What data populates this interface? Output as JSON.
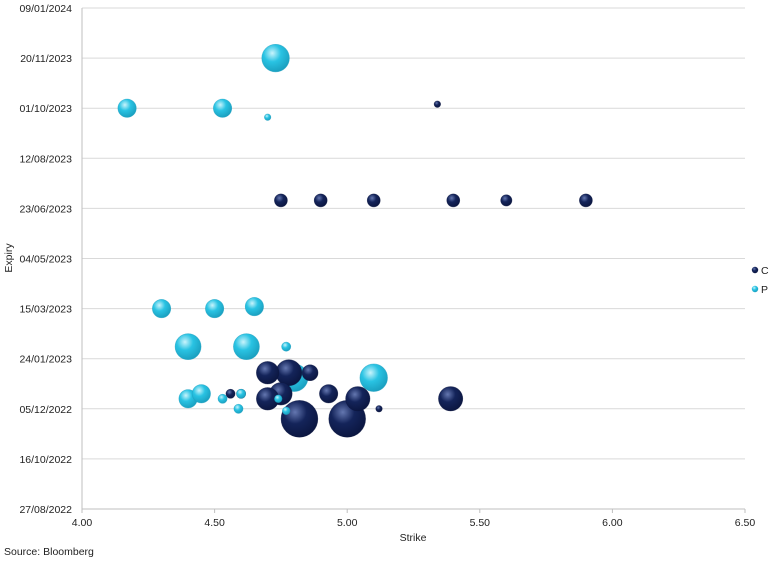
{
  "chart_data": {
    "type": "scatter",
    "subtype": "bubble",
    "title": "",
    "xlabel": "Strike",
    "ylabel": "Expiry",
    "xlim": [
      4.0,
      6.5
    ],
    "ylim": [
      "27/08/2022",
      "09/01/2024"
    ],
    "x_ticks": [
      "4.00",
      "4.50",
      "5.00",
      "5.50",
      "6.00",
      "6.50"
    ],
    "y_ticks": [
      "27/08/2022",
      "16/10/2022",
      "05/12/2022",
      "24/01/2023",
      "15/03/2023",
      "04/05/2023",
      "23/06/2023",
      "12/08/2023",
      "01/10/2023",
      "20/11/2023",
      "09/01/2024"
    ],
    "grid": "horizontal",
    "legend_position": "right",
    "series": [
      {
        "name": "C",
        "color": "#14245a",
        "points": [
          {
            "x": 4.75,
            "y": "01/07/2023",
            "size": 2
          },
          {
            "x": 4.9,
            "y": "01/07/2023",
            "size": 2
          },
          {
            "x": 5.1,
            "y": "01/07/2023",
            "size": 2
          },
          {
            "x": 5.4,
            "y": "01/07/2023",
            "size": 2
          },
          {
            "x": 5.6,
            "y": "01/07/2023",
            "size": 1.5
          },
          {
            "x": 5.9,
            "y": "01/07/2023",
            "size": 2
          },
          {
            "x": 5.34,
            "y": "05/10/2023",
            "size": 0.5
          },
          {
            "x": 4.7,
            "y": "10/01/2023",
            "size": 6
          },
          {
            "x": 4.78,
            "y": "10/01/2023",
            "size": 8
          },
          {
            "x": 4.86,
            "y": "10/01/2023",
            "size": 3
          },
          {
            "x": 4.75,
            "y": "20/12/2022",
            "size": 6
          },
          {
            "x": 4.7,
            "y": "15/12/2022",
            "size": 6
          },
          {
            "x": 4.93,
            "y": "20/12/2022",
            "size": 4
          },
          {
            "x": 5.04,
            "y": "15/12/2022",
            "size": 7
          },
          {
            "x": 5.39,
            "y": "15/12/2022",
            "size": 7
          },
          {
            "x": 4.56,
            "y": "20/12/2022",
            "size": 1
          },
          {
            "x": 4.6,
            "y": "20/12/2022",
            "size": 1
          },
          {
            "x": 5.12,
            "y": "05/12/2022",
            "size": 0.5
          },
          {
            "x": 4.82,
            "y": "25/11/2022",
            "size": 16
          },
          {
            "x": 5.0,
            "y": "25/11/2022",
            "size": 16
          }
        ]
      },
      {
        "name": "P",
        "color": "#29c3e3",
        "points": [
          {
            "x": 4.73,
            "y": "20/11/2023",
            "size": 9
          },
          {
            "x": 4.17,
            "y": "01/10/2023",
            "size": 4
          },
          {
            "x": 4.53,
            "y": "01/10/2023",
            "size": 4
          },
          {
            "x": 4.7,
            "y": "22/09/2023",
            "size": 0.5
          },
          {
            "x": 4.3,
            "y": "15/03/2023",
            "size": 4
          },
          {
            "x": 4.5,
            "y": "15/03/2023",
            "size": 4
          },
          {
            "x": 4.65,
            "y": "17/03/2023",
            "size": 4
          },
          {
            "x": 4.4,
            "y": "05/02/2023",
            "size": 8
          },
          {
            "x": 4.62,
            "y": "05/02/2023",
            "size": 8
          },
          {
            "x": 4.77,
            "y": "05/02/2023",
            "size": 1
          },
          {
            "x": 4.8,
            "y": "05/01/2023",
            "size": 9
          },
          {
            "x": 5.1,
            "y": "05/01/2023",
            "size": 9
          },
          {
            "x": 4.4,
            "y": "15/12/2022",
            "size": 4
          },
          {
            "x": 4.45,
            "y": "20/12/2022",
            "size": 4
          },
          {
            "x": 4.53,
            "y": "15/12/2022",
            "size": 1
          },
          {
            "x": 4.6,
            "y": "20/12/2022",
            "size": 1
          },
          {
            "x": 4.59,
            "y": "05/12/2022",
            "size": 1
          },
          {
            "x": 4.74,
            "y": "15/12/2022",
            "size": 0.7
          },
          {
            "x": 4.77,
            "y": "03/12/2022",
            "size": 0.7
          }
        ]
      }
    ]
  },
  "footer": {
    "source": "Source: Bloomberg"
  }
}
